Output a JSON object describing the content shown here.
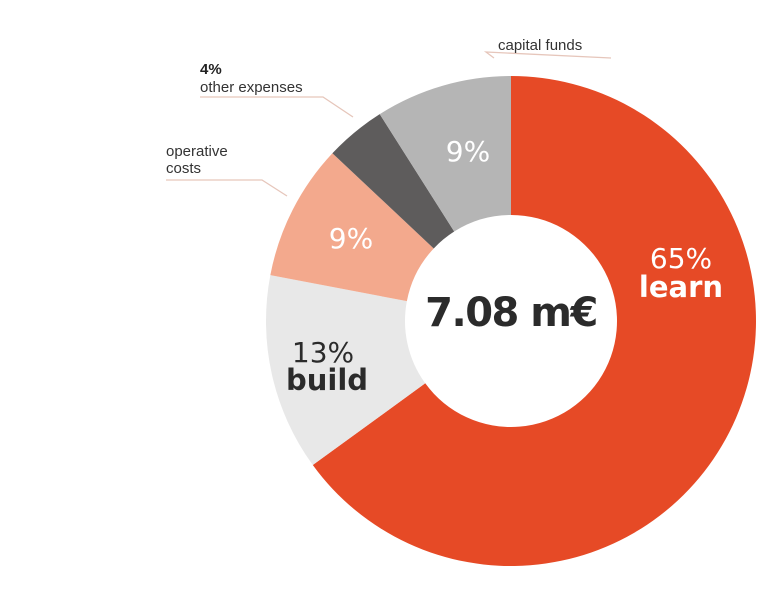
{
  "chart_data": {
    "type": "pie",
    "variant": "donut",
    "center_label": "7.08 m€",
    "slices": [
      {
        "name": "learn",
        "percent_label": "65%",
        "value": 65,
        "color": "#e64a26",
        "label_color": "#ffffff"
      },
      {
        "name": "build",
        "percent_label": "13%",
        "value": 13,
        "color": "#e8e8e8",
        "label_color": "#2b2b2b"
      },
      {
        "name": "operative costs",
        "percent_label": "9%",
        "value": 9,
        "color": "#f3a98d",
        "label_color": "#ffffff"
      },
      {
        "name": "other expenses",
        "percent_label": "4%",
        "value": 4,
        "color": "#5e5c5c",
        "label_color": "#ffffff"
      },
      {
        "name": "capital funds",
        "percent_label": "9%",
        "value": 9,
        "color": "#b5b5b5",
        "label_color": "#ffffff"
      }
    ],
    "callouts": {
      "capital_funds": "capital funds",
      "other_expenses_pct": "4%",
      "other_expenses": "other expenses",
      "operative_line1": "operative",
      "operative_line2": "costs"
    },
    "leader_color": "#e6c6bb"
  }
}
